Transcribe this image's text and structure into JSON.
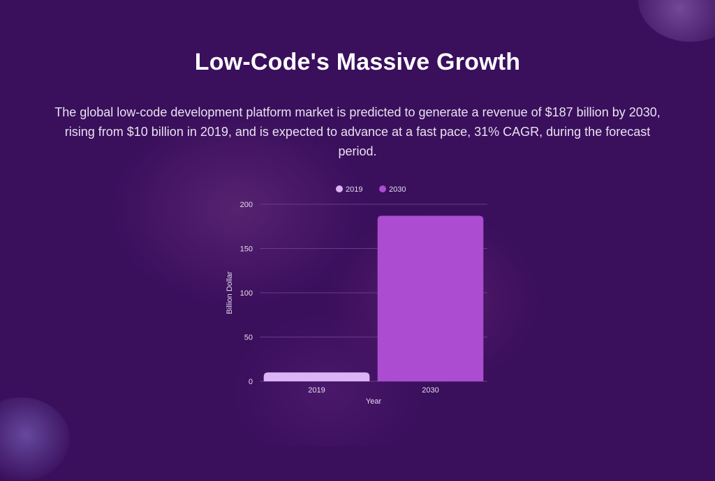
{
  "header": {
    "title": "Low-Code's Massive Growth",
    "description": "The global low-code development platform market is predicted to generate a revenue of $187 billion by 2030, rising from $10 billion in 2019, and is expected to advance at a fast pace, 31% CAGR, during the forecast period."
  },
  "colors": {
    "background": "#3a0f5c",
    "series_2019": "#dcb4f5",
    "series_2030": "#ab4cd1",
    "grid": "#6a3b86",
    "axis_text": "#e6dcef"
  },
  "chart_data": {
    "type": "bar",
    "categories": [
      "2019",
      "2030"
    ],
    "values": [
      10,
      187
    ],
    "legend": [
      "2019",
      "2030"
    ],
    "legend_position": "top-center",
    "xlabel": "Year",
    "ylabel": "Billion Dollar",
    "ylim": [
      0,
      200
    ],
    "yticks": [
      0,
      50,
      100,
      150,
      200
    ],
    "grid": true
  }
}
